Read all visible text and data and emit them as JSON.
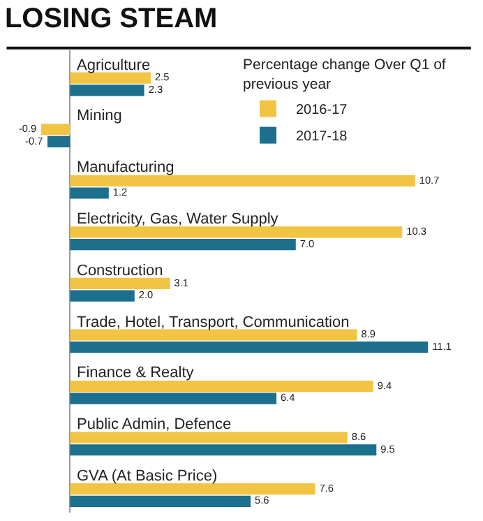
{
  "chart_data": {
    "type": "bar",
    "orientation": "horizontal",
    "title": "LOSING STEAM",
    "legend_title": "Percentage change Over Q1 of previous year",
    "legend": "top right",
    "grid": false,
    "tick_labels": false,
    "categories": [
      "Agriculture",
      "Mining",
      "Manufacturing",
      "Electricity, Gas, Water Supply",
      "Construction",
      "Trade, Hotel, Transport, Communication",
      "Finance & Realty",
      "Public Admin, Defence",
      "GVA (At Basic Price)"
    ],
    "series": [
      {
        "name": "2016-17",
        "color": "#f2c443",
        "values": [
          2.5,
          -0.9,
          10.7,
          10.3,
          3.1,
          8.9,
          9.4,
          8.6,
          7.6
        ],
        "value_labels": [
          "2.5",
          "-0.9",
          "10.7",
          "10.3",
          "3.1",
          "8.9",
          "9.4",
          "8.6",
          "7.6"
        ]
      },
      {
        "name": "2017-18",
        "color": "#1d6f8e",
        "values": [
          2.3,
          -0.7,
          1.2,
          7.0,
          2.0,
          11.1,
          6.4,
          9.5,
          5.6
        ],
        "value_labels": [
          "2.3",
          "-0.7",
          "1.2",
          "7.0",
          "2.0",
          "11.1",
          "6.4",
          "9.5",
          "5.6"
        ]
      }
    ]
  }
}
